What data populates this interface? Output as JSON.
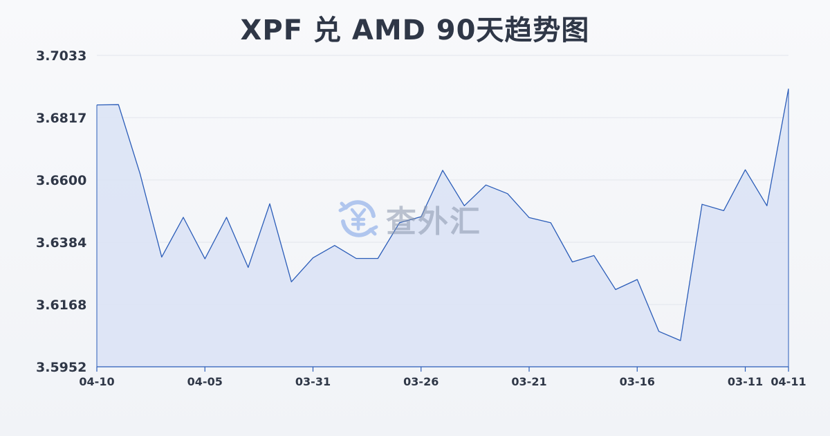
{
  "title": "XPF 兑 AMD 90天趋势图",
  "watermark": {
    "text": "查外汇",
    "icon": "yen-exchange-icon"
  },
  "colors": {
    "line": "#2a5cb8",
    "fill": "#dbe3f5",
    "grid": "#e2e5ec",
    "text": "#2f3747",
    "watermark": "#8a96ad"
  },
  "chart_data": {
    "type": "area",
    "title": "XPF 兑 AMD 90天趋势图",
    "xlabel": "",
    "ylabel": "",
    "ylim": [
      3.5952,
      3.7033
    ],
    "yticks": [
      "3.7033",
      "3.6817",
      "3.6600",
      "3.6384",
      "3.6168",
      "3.5952"
    ],
    "xticks": [
      {
        "index": 0,
        "label": "04-10"
      },
      {
        "index": 5,
        "label": "04-05"
      },
      {
        "index": 10,
        "label": "03-31"
      },
      {
        "index": 15,
        "label": "03-26"
      },
      {
        "index": 20,
        "label": "03-21"
      },
      {
        "index": 25,
        "label": "03-16"
      },
      {
        "index": 30,
        "label": "03-11"
      },
      {
        "index": 32,
        "label": "04-11"
      }
    ],
    "grid": true,
    "series": [
      {
        "values": [
          3.6861,
          3.6862,
          3.6622,
          3.6333,
          3.6471,
          3.6327,
          3.6471,
          3.6297,
          3.6518,
          3.6247,
          3.633,
          3.6373,
          3.6328,
          3.6328,
          3.6452,
          3.6473,
          3.6634,
          3.6511,
          3.6583,
          3.6553,
          3.647,
          3.6452,
          3.6316,
          3.6338,
          3.622,
          3.6255,
          3.6075,
          3.6043,
          3.6516,
          3.6494,
          3.6636,
          3.6511,
          3.6917
        ]
      }
    ]
  }
}
